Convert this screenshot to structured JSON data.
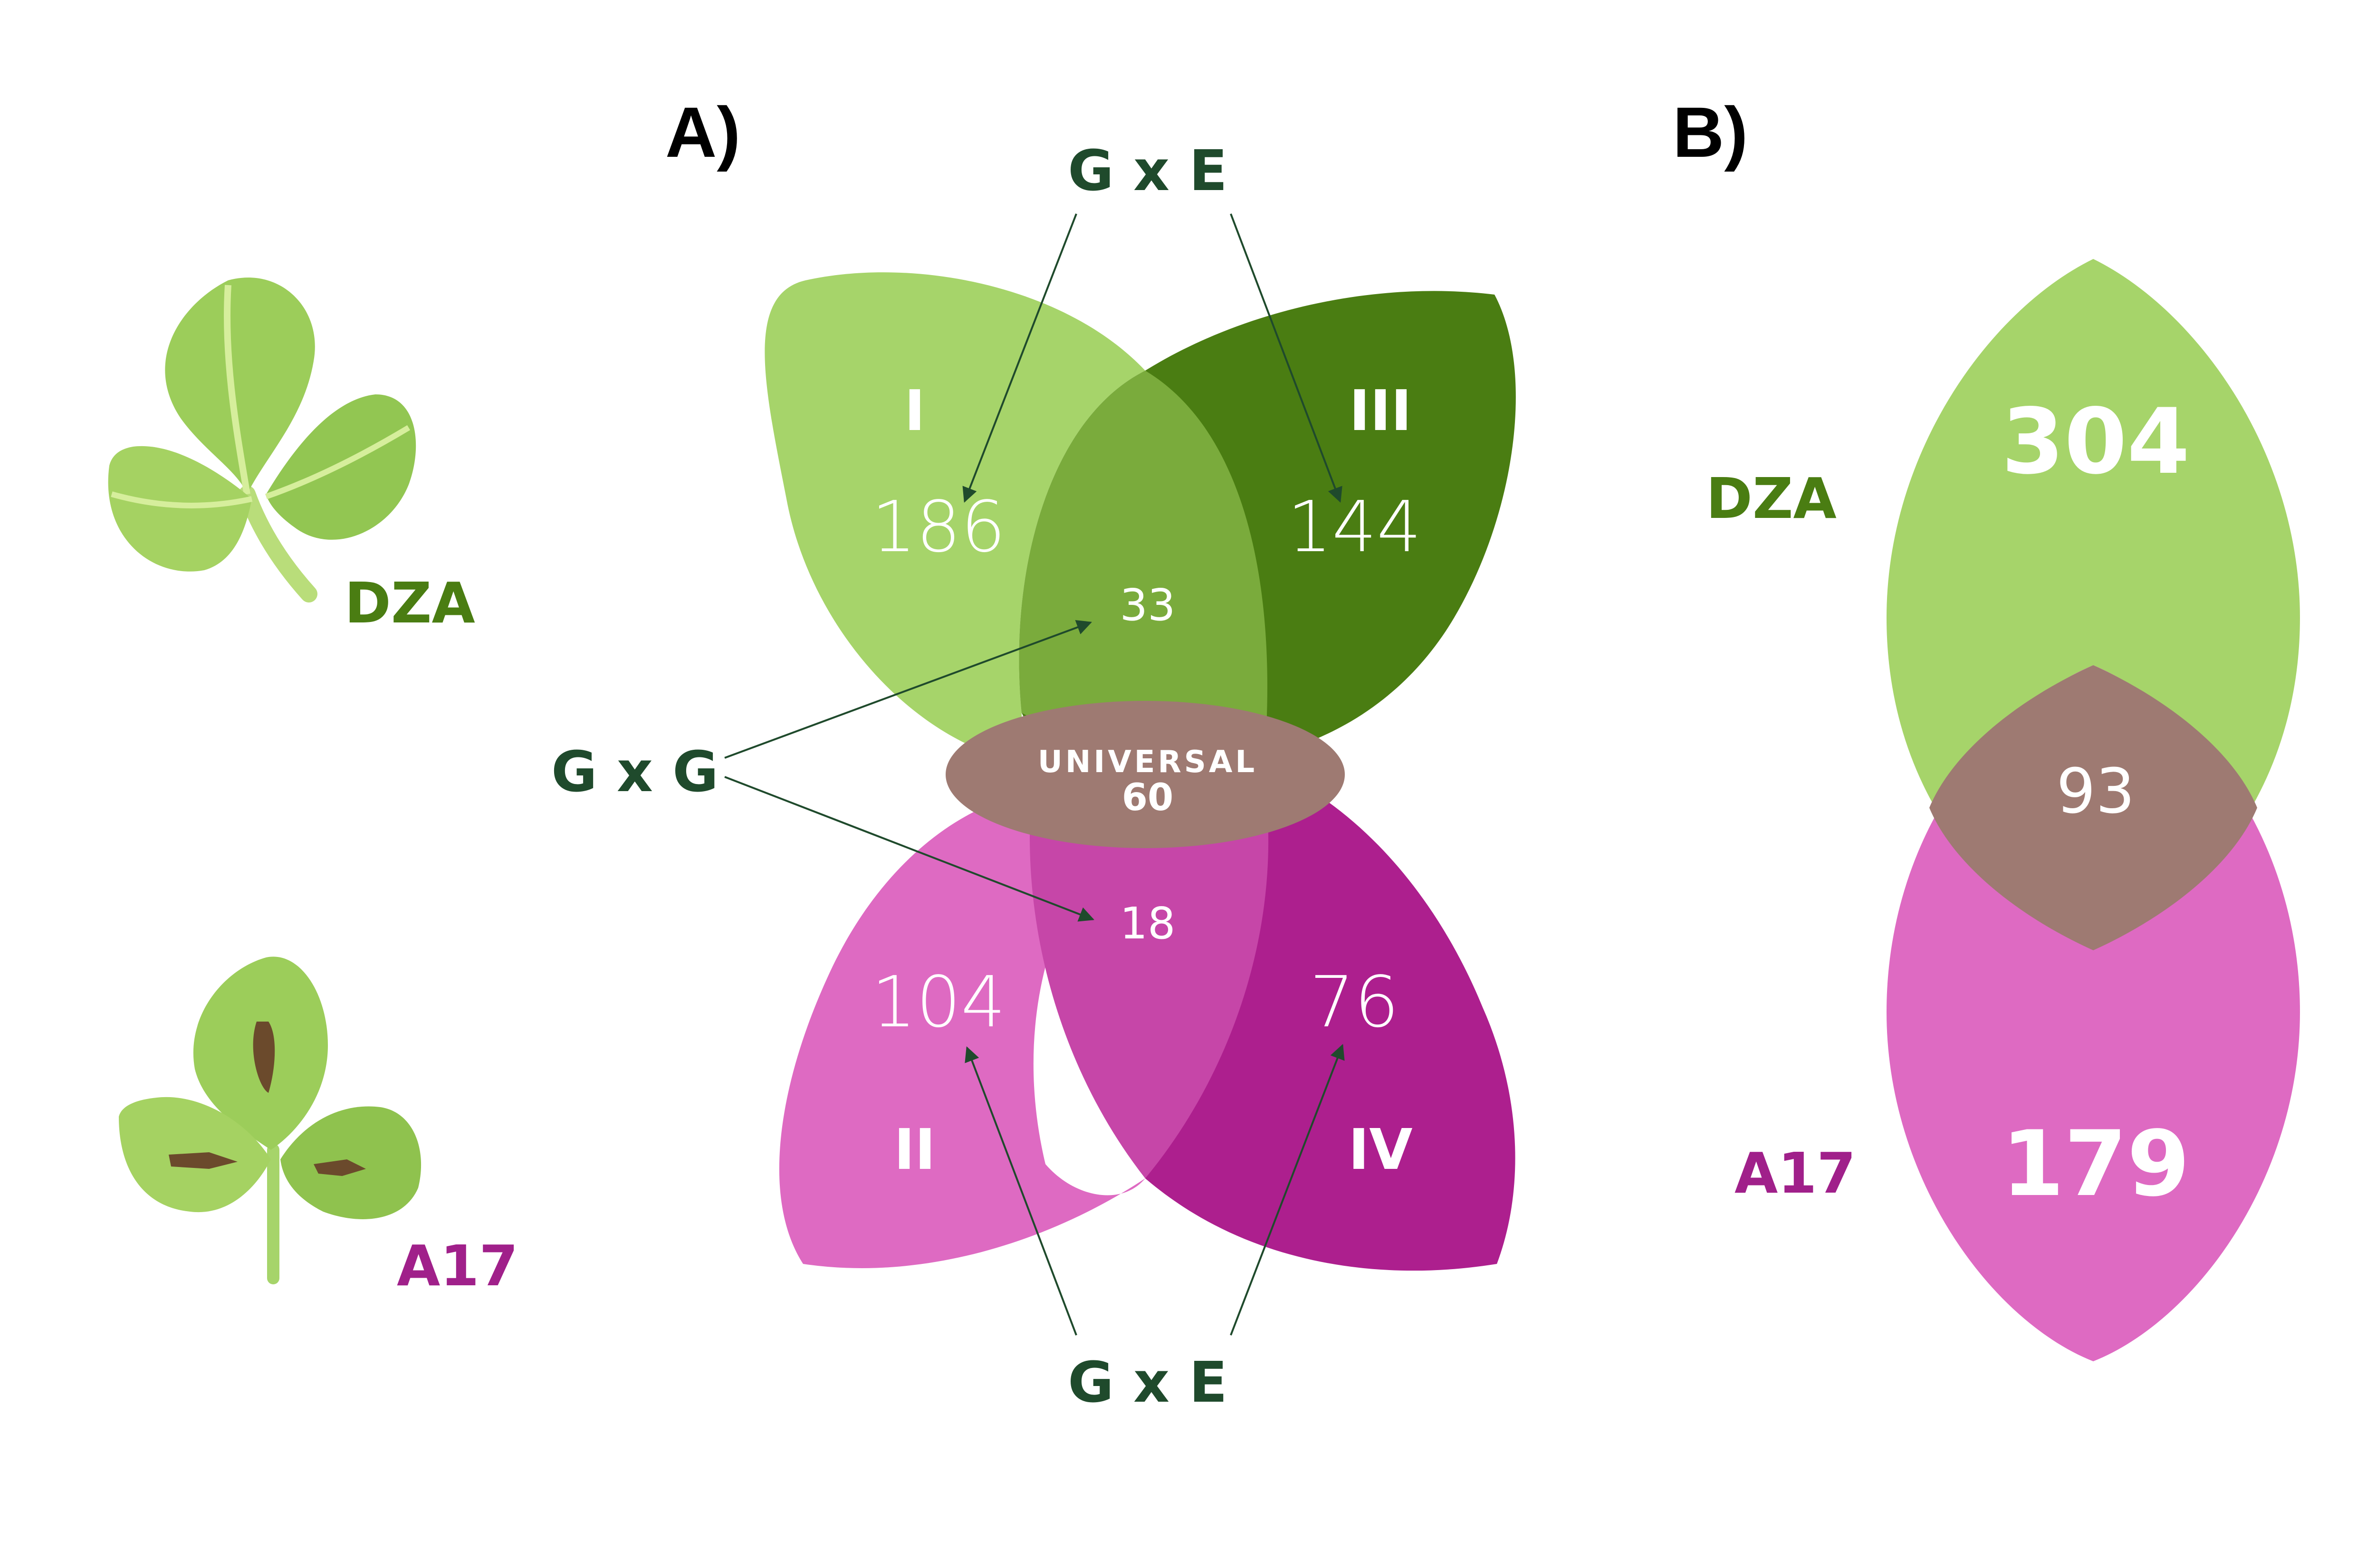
{
  "colors": {
    "green_light": "#a6d46a",
    "green_dark": "#4a7d12",
    "green_overlap": "#7aab3c",
    "pink_light": "#de6ac2",
    "pink_dark": "#ad1f8e",
    "pink_overlap": "#c646a8",
    "universal": "#9e7a72",
    "annotation": "#1f4a2c",
    "dza_label": "#4a7d12",
    "a17_label": "#a0208a"
  },
  "leaves": {
    "top_label": "DZA",
    "bottom_label": "A17"
  },
  "panel_a": {
    "label": "A)",
    "gxe_top": "G x E",
    "gxe_bottom": "G x E",
    "gxg": "G x G",
    "regions": {
      "I": {
        "roman": "I",
        "count": "186"
      },
      "III": {
        "roman": "III",
        "count": "144"
      },
      "II": {
        "roman": "II",
        "count": "104"
      },
      "IV": {
        "roman": "IV",
        "count": "76"
      }
    },
    "overlap_top": "33",
    "overlap_bottom": "18",
    "universal_label": "UNIVERSAL",
    "universal_count": "60"
  },
  "panel_b": {
    "label": "B)",
    "dza_label": "DZA",
    "a17_label": "A17",
    "dza_count": "304",
    "overlap_count": "93",
    "a17_count": "179"
  }
}
